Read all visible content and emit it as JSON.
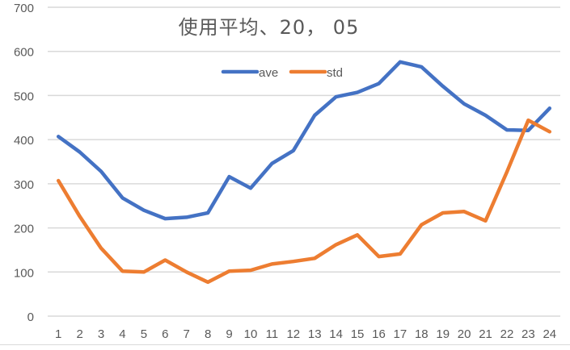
{
  "chart_data": {
    "type": "line",
    "title": "使用平均、20， 05",
    "xlabel": "",
    "ylabel": "",
    "categories": [
      "1",
      "2",
      "3",
      "4",
      "5",
      "6",
      "7",
      "8",
      "9",
      "10",
      "11",
      "12",
      "13",
      "14",
      "15",
      "16",
      "17",
      "18",
      "19",
      "20",
      "21",
      "22",
      "23",
      "24"
    ],
    "series": [
      {
        "name": "ave",
        "color": "#4472C4",
        "values": [
          407,
          372,
          328,
          268,
          240,
          221,
          224,
          234,
          316,
          290,
          346,
          375,
          455,
          497,
          507,
          527,
          576,
          565,
          521,
          481,
          455,
          422,
          421,
          471
        ]
      },
      {
        "name": "std",
        "color": "#ED7D31",
        "values": [
          307,
          226,
          154,
          102,
          100,
          127,
          100,
          77,
          102,
          104,
          118,
          124,
          131,
          162,
          184,
          135,
          141,
          207,
          234,
          237,
          216,
          327,
          444,
          418
        ]
      }
    ],
    "ylim": [
      0,
      700
    ],
    "yticks": [
      0,
      100,
      200,
      300,
      400,
      500,
      600,
      700
    ],
    "grid": true,
    "legend_position": "top"
  },
  "colors": {
    "grid": "#d9d9d9",
    "text": "#595959"
  }
}
